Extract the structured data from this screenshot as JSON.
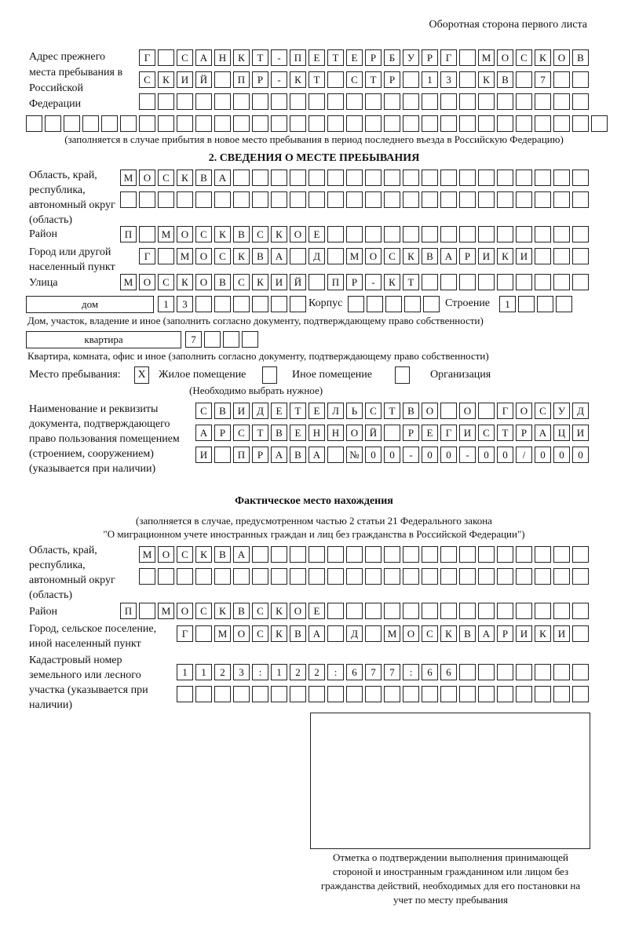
{
  "header": {
    "title": "Оборотная сторона первого листа"
  },
  "previous_address": {
    "label": "Адрес прежнего места пребывания в Российской Федерации",
    "rows": [
      [
        "Г",
        "",
        "С",
        "А",
        "Н",
        "К",
        "Т",
        "-",
        "П",
        "Е",
        "Т",
        "Е",
        "Р",
        "Б",
        "У",
        "Р",
        "Г",
        "",
        "М",
        "О",
        "С",
        "К",
        "О",
        "В"
      ],
      [
        "С",
        "К",
        "И",
        "Й",
        "",
        "П",
        "Р",
        "-",
        "К",
        "Т",
        "",
        "С",
        "Т",
        "Р",
        "",
        "1",
        "3",
        "",
        "К",
        "В",
        "",
        "7",
        "",
        ""
      ],
      [
        "",
        "",
        "",
        "",
        "",
        "",
        "",
        "",
        "",
        "",
        "",
        "",
        "",
        "",
        "",
        "",
        "",
        "",
        "",
        "",
        "",
        "",
        "",
        ""
      ],
      [
        "",
        "",
        "",
        "",
        "",
        "",
        "",
        "",
        "",
        "",
        "",
        "",
        "",
        "",
        "",
        "",
        "",
        "",
        "",
        "",
        "",
        "",
        "",
        "",
        "",
        "",
        "",
        "",
        "",
        "",
        ""
      ]
    ],
    "note": "(заполняется в случае прибытия в новое место пребывания в период последнего въезда в Российскую Федерацию)"
  },
  "section2": {
    "title": "2. СВЕДЕНИЯ О МЕСТЕ ПРЕБЫВАНИЯ",
    "region_label": "Область, край, республика, автономный округ (область)",
    "region_rows": [
      [
        "М",
        "О",
        "С",
        "К",
        "В",
        "А",
        "",
        "",
        "",
        "",
        "",
        "",
        "",
        "",
        "",
        "",
        "",
        "",
        "",
        "",
        "",
        "",
        "",
        "",
        ""
      ],
      [
        "",
        "",
        "",
        "",
        "",
        "",
        "",
        "",
        "",
        "",
        "",
        "",
        "",
        "",
        "",
        "",
        "",
        "",
        "",
        "",
        "",
        "",
        "",
        "",
        ""
      ]
    ],
    "district_label": "Район",
    "district": [
      "П",
      "",
      "М",
      "О",
      "С",
      "К",
      "В",
      "С",
      "К",
      "О",
      "Е",
      "",
      "",
      "",
      "",
      "",
      "",
      "",
      "",
      "",
      "",
      "",
      "",
      "",
      ""
    ],
    "city_label": "Город или другой населенный пункт",
    "city": [
      "Г",
      "",
      "М",
      "О",
      "С",
      "К",
      "В",
      "А",
      "",
      "Д",
      "",
      "М",
      "О",
      "С",
      "К",
      "В",
      "А",
      "Р",
      "И",
      "К",
      "И",
      "",
      "",
      ""
    ],
    "street_label": "Улица",
    "street": [
      "М",
      "О",
      "С",
      "К",
      "О",
      "В",
      "С",
      "К",
      "И",
      "Й",
      "",
      "П",
      "Р",
      "-",
      "К",
      "Т",
      "",
      "",
      "",
      "",
      "",
      "",
      "",
      "",
      ""
    ],
    "house_type": "дом",
    "house": [
      "1",
      "3",
      "",
      "",
      "",
      "",
      "",
      ""
    ],
    "building_label": "Корпус",
    "building": [
      "",
      "",
      "",
      "",
      ""
    ],
    "structure_label": "Строение",
    "structure": [
      "1",
      "",
      "",
      ""
    ],
    "house_note": "Дом, участок, владение и иное (заполнить согласно документу, подтверждающему право собственности)",
    "apartment_type": "квартира",
    "apartment": [
      "7",
      "",
      "",
      ""
    ],
    "apartment_note": "Квартира, комната, офис и иное (заполнить согласно документу, подтверждающему право собственности)",
    "stay_place_label": "Место пребывания:",
    "options": [
      {
        "label": "Жилое помещение",
        "mark": "X"
      },
      {
        "label": "Иное помещение",
        "mark": ""
      },
      {
        "label": "Организация",
        "mark": ""
      }
    ],
    "choose_note": "(Необходимо выбрать нужное)",
    "document_label": "Наименование и реквизиты документа, подтверждающего право пользования помещением (строением, сооружением) (указывается при наличии)",
    "document_rows": [
      [
        "С",
        "В",
        "И",
        "Д",
        "Е",
        "Т",
        "Е",
        "Л",
        "Ь",
        "С",
        "Т",
        "В",
        "О",
        "",
        "О",
        "",
        "Г",
        "О",
        "С",
        "У",
        "Д"
      ],
      [
        "А",
        "Р",
        "С",
        "Т",
        "В",
        "Е",
        "Н",
        "Н",
        "О",
        "Й",
        "",
        "Р",
        "Е",
        "Г",
        "И",
        "С",
        "Т",
        "Р",
        "А",
        "Ц",
        "И"
      ],
      [
        "И",
        "",
        "П",
        "Р",
        "А",
        "В",
        "А",
        "",
        "№",
        "0",
        "0",
        "-",
        "0",
        "0",
        "-",
        "0",
        "0",
        "/",
        "0",
        "0",
        "0"
      ]
    ]
  },
  "actual": {
    "title": "Фактическое место нахождения",
    "note1": "(заполняется в случае, предусмотренном частью 2 статьи 21 Федерального закона",
    "note2": "\"О миграционном учете иностранных граждан и лиц без гражданства в Российской Федерации\")",
    "region_label": "Область, край, республика, автономный округ (область)",
    "region_rows": [
      [
        "М",
        "О",
        "С",
        "К",
        "В",
        "А",
        "",
        "",
        "",
        "",
        "",
        "",
        "",
        "",
        "",
        "",
        "",
        "",
        "",
        "",
        "",
        "",
        "",
        ""
      ],
      [
        "",
        "",
        "",
        "",
        "",
        "",
        "",
        "",
        "",
        "",
        "",
        "",
        "",
        "",
        "",
        "",
        "",
        "",
        "",
        "",
        "",
        "",
        "",
        ""
      ]
    ],
    "district_label": "Район",
    "district": [
      "П",
      "",
      "М",
      "О",
      "С",
      "К",
      "В",
      "С",
      "К",
      "О",
      "Е",
      "",
      "",
      "",
      "",
      "",
      "",
      "",
      "",
      "",
      "",
      "",
      "",
      "",
      ""
    ],
    "city_label": "Город, сельское поселение, иной населенный пункт",
    "city": [
      "Г",
      "",
      "М",
      "О",
      "С",
      "К",
      "В",
      "А",
      "",
      "Д",
      "",
      "М",
      "О",
      "С",
      "К",
      "В",
      "А",
      "Р",
      "И",
      "К",
      "И",
      ""
    ],
    "cadastral_label": "Кадастровый номер земельного или лесного участка (указывается при наличии)",
    "cadastral_rows": [
      [
        "1",
        "1",
        "2",
        "3",
        ":",
        "1",
        "2",
        "2",
        ":",
        "6",
        "7",
        "7",
        ":",
        "6",
        "6",
        "",
        "",
        "",
        "",
        "",
        "",
        ""
      ],
      [
        "",
        "",
        "",
        "",
        "",
        "",
        "",
        "",
        "",
        "",
        "",
        "",
        "",
        "",
        "",
        "",
        "",
        "",
        "",
        "",
        "",
        ""
      ]
    ]
  },
  "confirmation": {
    "caption": "Отметка о подтверждении выполнения принимающей стороной и иностранным гражданином или лицом без гражданства действий, необходимых для его постановки на учет по месту пребывания"
  }
}
